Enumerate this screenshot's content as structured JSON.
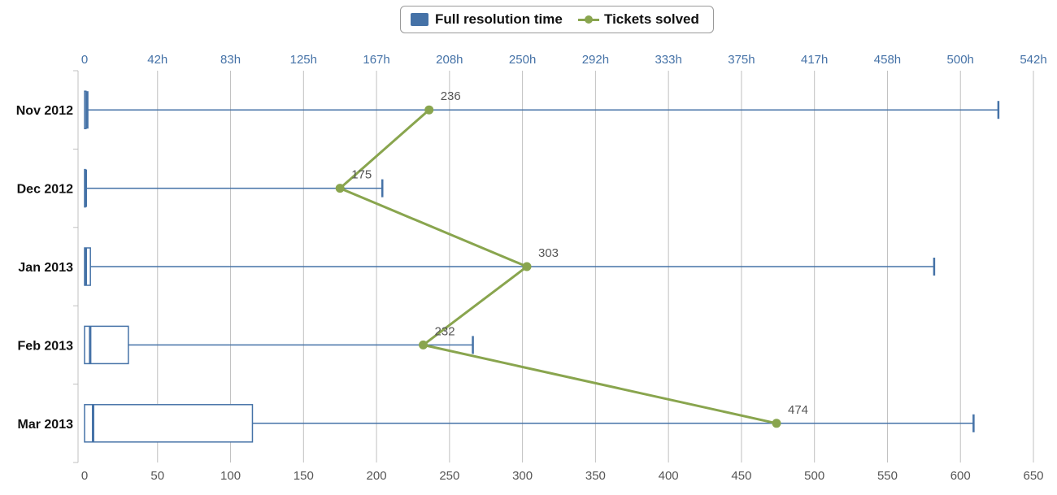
{
  "legend": {
    "box_label": "Full resolution time",
    "line_label": "Tickets solved"
  },
  "colors": {
    "box": "#4572a7",
    "line": "#89a54e",
    "grid": "#c0c0c0",
    "top_axis_text": "#4572a7",
    "bottom_axis_text": "#555555"
  },
  "chart_data": {
    "type": "boxplot-with-line",
    "orientation": "horizontal",
    "categories": [
      "Nov 2012",
      "Dec 2012",
      "Jan 2013",
      "Feb 2013",
      "Mar 2013"
    ],
    "bottom_axis": {
      "min": 0,
      "max": 650,
      "ticks": [
        "0",
        "50",
        "100",
        "150",
        "200",
        "250",
        "300",
        "350",
        "400",
        "450",
        "500",
        "550",
        "600",
        "650"
      ]
    },
    "top_axis": {
      "ticks": [
        "0",
        "42h",
        "83h",
        "125h",
        "167h",
        "208h",
        "250h",
        "292h",
        "333h",
        "375h",
        "417h",
        "458h",
        "500h",
        "542h"
      ]
    },
    "grid": true,
    "legend_position": "top-center",
    "series": [
      {
        "name": "Full resolution time",
        "type": "boxplot",
        "boxes": [
          {
            "low": 0,
            "q1": 0,
            "median": 1,
            "q3": 1,
            "high": 626
          },
          {
            "low": 0,
            "q1": 0,
            "median": 0,
            "q3": 0,
            "high": 204
          },
          {
            "low": 0,
            "q1": 0,
            "median": 0,
            "q3": 4,
            "high": 582
          },
          {
            "low": 0,
            "q1": 0,
            "median": 3,
            "q3": 30,
            "high": 266
          },
          {
            "low": 0,
            "q1": 0,
            "median": 5,
            "q3": 115,
            "high": 609
          }
        ]
      },
      {
        "name": "Tickets solved",
        "type": "line",
        "values": [
          236,
          175,
          303,
          232,
          474
        ],
        "data_labels": [
          "236",
          "175",
          "303",
          "232",
          "474"
        ]
      }
    ]
  }
}
